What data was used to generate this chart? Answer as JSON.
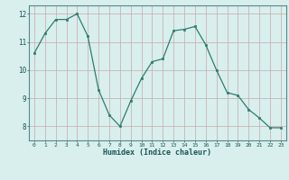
{
  "x": [
    0,
    1,
    2,
    3,
    4,
    5,
    6,
    7,
    8,
    9,
    10,
    11,
    12,
    13,
    14,
    15,
    16,
    17,
    18,
    19,
    20,
    21,
    22,
    23
  ],
  "y": [
    10.6,
    11.3,
    11.8,
    11.8,
    12.0,
    11.2,
    9.3,
    8.4,
    8.0,
    8.9,
    9.7,
    10.3,
    10.4,
    11.4,
    11.45,
    11.55,
    10.9,
    10.0,
    9.2,
    9.1,
    8.6,
    8.3,
    7.95,
    7.95
  ],
  "xlabel": "Humidex (Indice chaleur)",
  "ylim": [
    7.5,
    12.3
  ],
  "xlim": [
    -0.5,
    23.5
  ],
  "yticks": [
    8,
    9,
    10,
    11,
    12
  ],
  "xticks": [
    0,
    1,
    2,
    3,
    4,
    5,
    6,
    7,
    8,
    9,
    10,
    11,
    12,
    13,
    14,
    15,
    16,
    17,
    18,
    19,
    20,
    21,
    22,
    23
  ],
  "line_color": "#2d7d6e",
  "marker_color": "#2d7d6e",
  "bg_color": "#d8efee",
  "grid_major_color": "#c8a8a8",
  "grid_minor_color": "#d8c0c0"
}
